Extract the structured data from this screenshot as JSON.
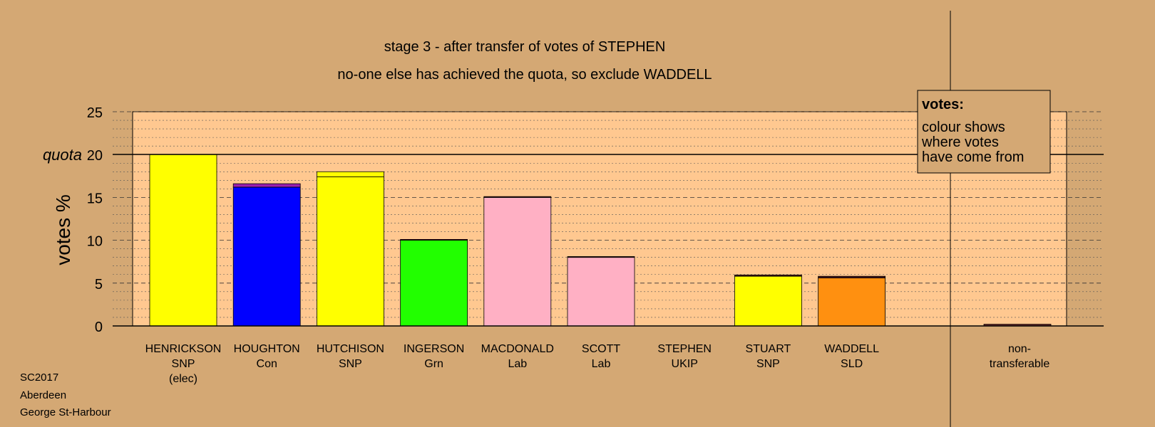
{
  "chart_data": {
    "type": "bar",
    "title": "stage 3 - after transfer of votes of STEPHEN",
    "subtitle": "no-one else has achieved the quota, so exclude WADDELL",
    "ylabel": "votes %",
    "quota_label": "quota",
    "quota": 20,
    "ylim": [
      0,
      25
    ],
    "yticks": [
      "0",
      "5",
      "10",
      "15",
      "20",
      "25"
    ],
    "grid": true,
    "candidates": [
      {
        "name": "HENRICKSON",
        "party": "SNP",
        "note": "(elec)",
        "segments": [
          {
            "value": 20.0,
            "color": "#ffff00"
          }
        ]
      },
      {
        "name": "HOUGHTON",
        "party": "Con",
        "note": "",
        "segments": [
          {
            "value": 16.2,
            "color": "#0000ff"
          },
          {
            "value": 0.4,
            "color": "#9a1fb0"
          }
        ]
      },
      {
        "name": "HUTCHISON",
        "party": "SNP",
        "note": "",
        "segments": [
          {
            "value": 17.4,
            "color": "#ffff00"
          },
          {
            "value": 0.6,
            "color": "#ffff00"
          }
        ]
      },
      {
        "name": "INGERSON",
        "party": "Grn",
        "note": "",
        "segments": [
          {
            "value": 10.0,
            "color": "#22ff00"
          },
          {
            "value": 0.1,
            "color": "#4a1a1a"
          }
        ]
      },
      {
        "name": "MACDONALD",
        "party": "Lab",
        "note": "",
        "segments": [
          {
            "value": 15.0,
            "color": "#ffb0c4"
          },
          {
            "value": 0.1,
            "color": "#4a1a1a"
          }
        ]
      },
      {
        "name": "SCOTT",
        "party": "Lab",
        "note": "",
        "segments": [
          {
            "value": 8.0,
            "color": "#ffb0c4"
          },
          {
            "value": 0.1,
            "color": "#4a1a1a"
          }
        ]
      },
      {
        "name": "STEPHEN",
        "party": "UKIP",
        "note": "",
        "segments": []
      },
      {
        "name": "STUART",
        "party": "SNP",
        "note": "",
        "segments": [
          {
            "value": 5.8,
            "color": "#ffff00"
          },
          {
            "value": 0.15,
            "color": "#4a1a1a"
          }
        ]
      },
      {
        "name": "WADDELL",
        "party": "SLD",
        "note": "",
        "segments": [
          {
            "value": 5.6,
            "color": "#ff9010"
          },
          {
            "value": 0.2,
            "color": "#4a1a1a"
          }
        ]
      }
    ],
    "nontransferable": {
      "label_line1": "non-",
      "label_line2": "transferable",
      "value": 0.2,
      "color": "#6b2a2a"
    },
    "legend": {
      "title": "votes:",
      "lines": [
        "colour shows",
        "where votes",
        "have come from"
      ]
    },
    "colors": {
      "background": "#d4a874",
      "plot_area": "#ffc890"
    }
  },
  "footer": {
    "line1": "SC2017",
    "line2": "Aberdeen",
    "line3": "George St-Harbour"
  }
}
